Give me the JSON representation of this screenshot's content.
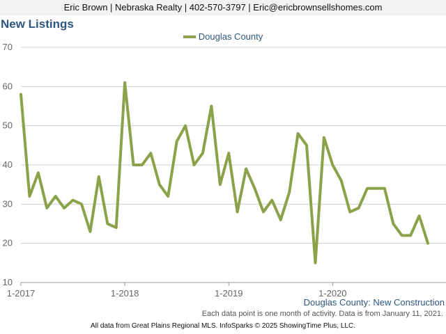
{
  "header": {
    "contact": "Eric Brown | Nebraska Realty | 402-570-3797 | Eric@ericbrownsellshomes.com"
  },
  "chart_title": "New Listings",
  "caption": "Douglas County: New Construction",
  "note": "Each data point is one month of activity. Data is from January 11, 2021.",
  "footer": "All data from Great Plains Regional MLS. InfoSparks © 2025 ShowingTime Plus, LLC.",
  "colors": {
    "series": "#8aa24a",
    "title": "#2d5680",
    "grid": "#cfcfcf"
  },
  "chart_data": {
    "type": "line",
    "title": "New Listings",
    "xlabel": "",
    "ylabel": "",
    "ylim": [
      10,
      70
    ],
    "yticks": [
      10,
      20,
      30,
      40,
      50,
      60,
      70
    ],
    "xtick_labels": [
      "1-2017",
      "1-2018",
      "1-2019",
      "1-2020"
    ],
    "xtick_index": [
      0,
      12,
      24,
      36
    ],
    "grid": true,
    "legend_position": "top-center",
    "series": [
      {
        "name": "Douglas County",
        "color": "#8aa24a",
        "values": [
          58,
          32,
          38,
          29,
          32,
          29,
          31,
          30,
          23,
          37,
          25,
          24,
          61,
          40,
          40,
          43,
          35,
          32,
          46,
          50,
          40,
          43,
          55,
          35,
          43,
          28,
          39,
          34,
          28,
          31,
          26,
          33,
          48,
          45,
          15,
          47,
          40,
          36,
          28,
          29,
          34,
          34,
          34,
          25,
          22,
          22,
          27,
          20
        ]
      }
    ]
  }
}
